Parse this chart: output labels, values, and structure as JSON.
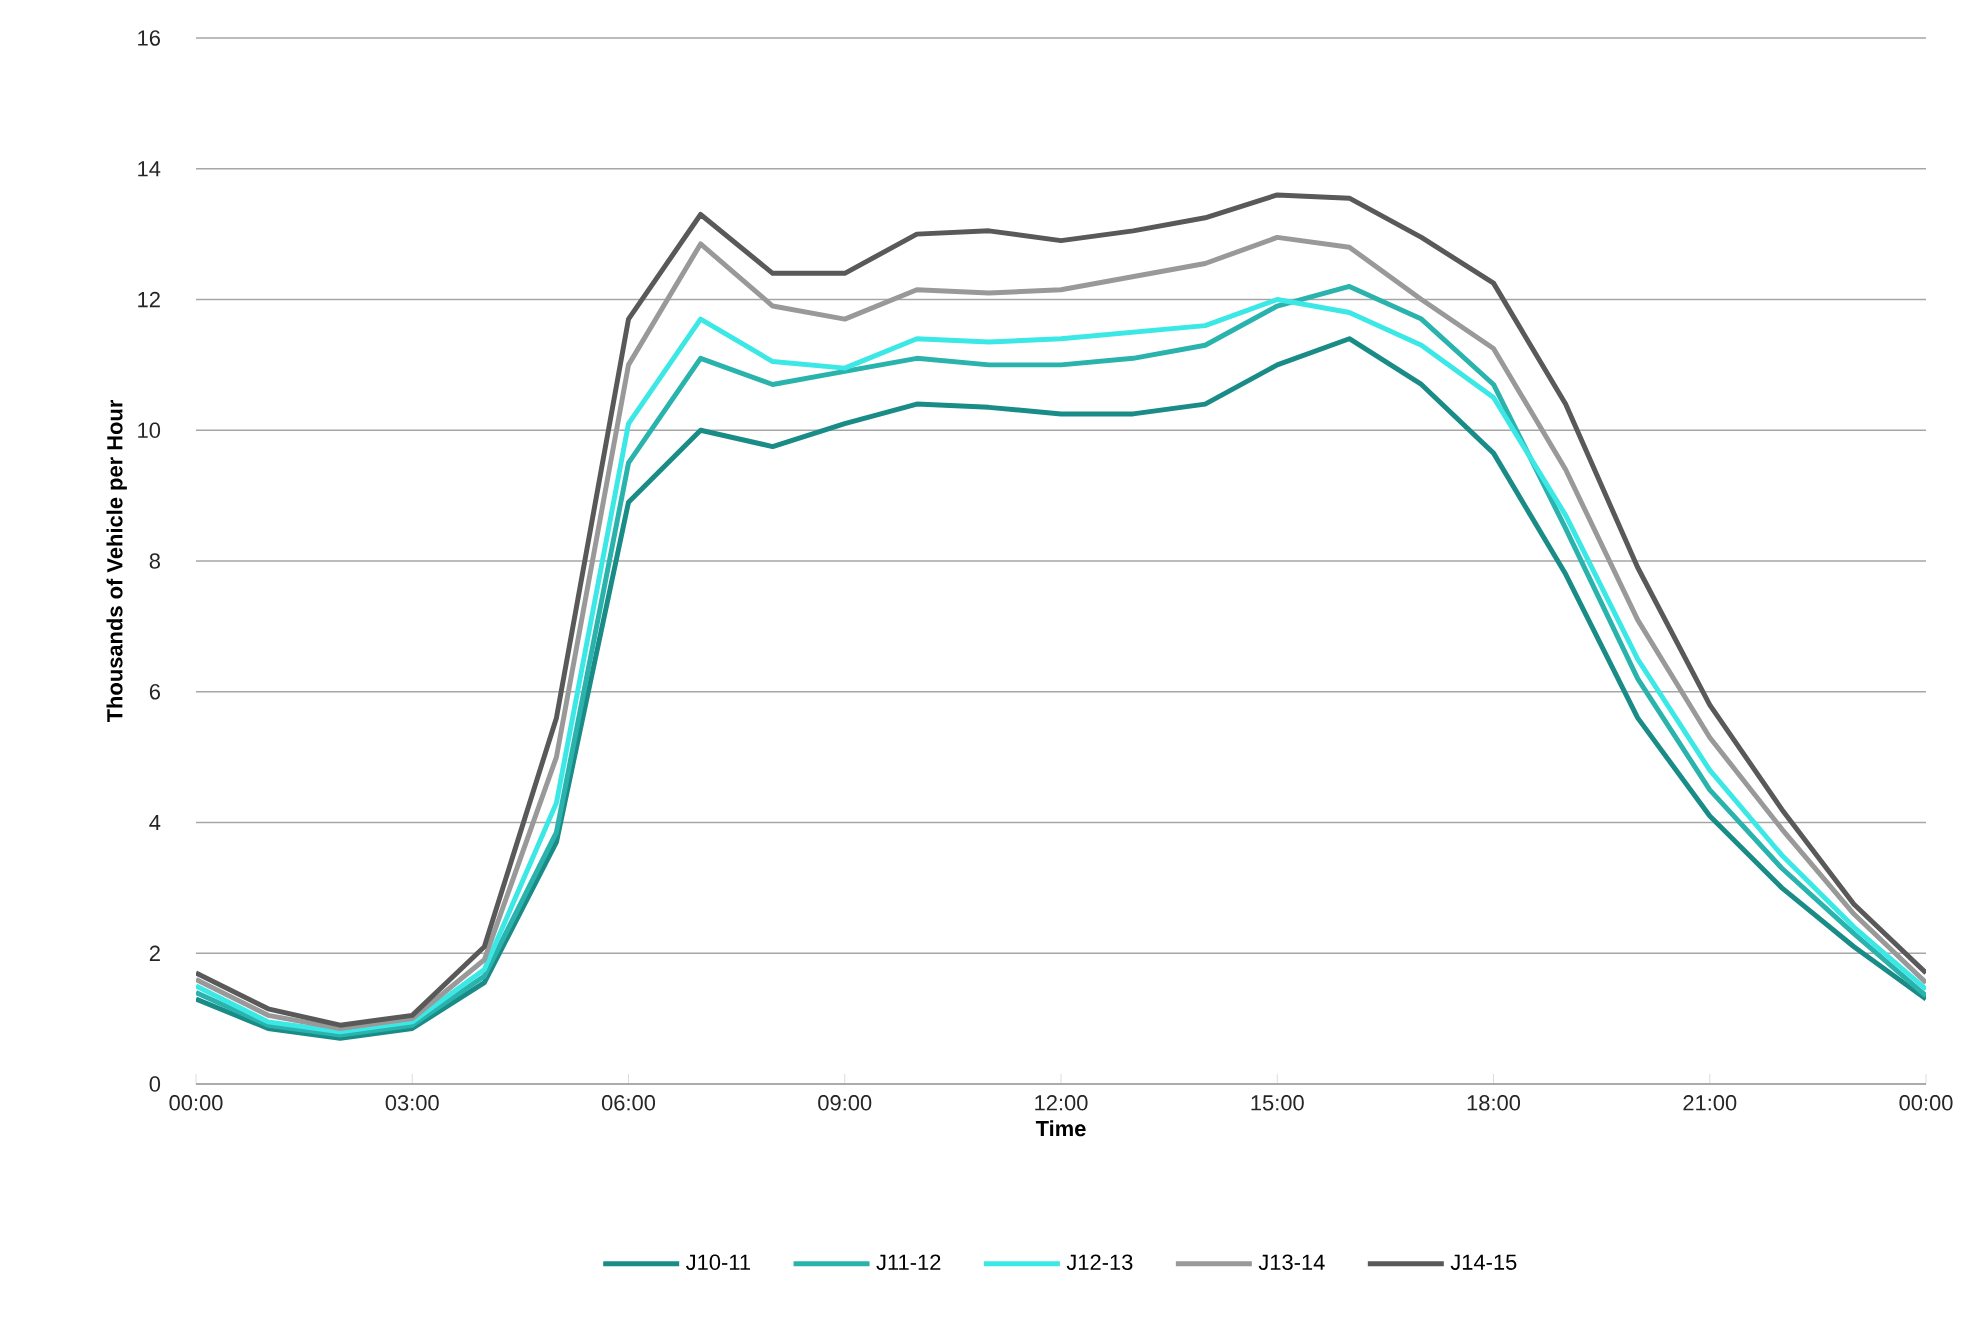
{
  "chart_data": {
    "type": "line",
    "xlabel": "Time",
    "ylabel": "Thousands  of Vehicle per Hour",
    "x": [
      0,
      1,
      2,
      3,
      4,
      5,
      6,
      7,
      8,
      9,
      10,
      11,
      12,
      13,
      14,
      15,
      16,
      17,
      18,
      19,
      20,
      21,
      22,
      23,
      24
    ],
    "xlim": [
      0,
      24
    ],
    "xticks": [
      {
        "value": 0,
        "label": "00:00"
      },
      {
        "value": 3,
        "label": "03:00"
      },
      {
        "value": 6,
        "label": "06:00"
      },
      {
        "value": 9,
        "label": "09:00"
      },
      {
        "value": 12,
        "label": "12:00"
      },
      {
        "value": 15,
        "label": "15:00"
      },
      {
        "value": 18,
        "label": "18:00"
      },
      {
        "value": 21,
        "label": "21:00"
      },
      {
        "value": 24,
        "label": "00:00"
      }
    ],
    "ylim": [
      0,
      16
    ],
    "yticks": [
      0,
      2,
      4,
      6,
      8,
      10,
      12,
      14,
      16
    ],
    "grid": "y",
    "legend": "bottom",
    "line_style": "solid",
    "series": [
      {
        "name": "J10-11",
        "color": "#1a8c87",
        "values": [
          1.3,
          0.85,
          0.7,
          0.85,
          1.55,
          3.7,
          8.9,
          10.0,
          9.75,
          10.1,
          10.4,
          10.35,
          10.25,
          10.25,
          10.4,
          11.0,
          11.4,
          10.7,
          9.65,
          7.8,
          5.6,
          4.1,
          3.0,
          2.1,
          1.3
        ]
      },
      {
        "name": "J11-12",
        "color": "#2ab3ad",
        "values": [
          1.4,
          0.9,
          0.75,
          0.9,
          1.65,
          3.85,
          9.5,
          11.1,
          10.7,
          10.9,
          11.1,
          11.0,
          11.0,
          11.1,
          11.3,
          11.9,
          12.2,
          11.7,
          10.7,
          8.5,
          6.2,
          4.5,
          3.3,
          2.3,
          1.35
        ]
      },
      {
        "name": "J12-13",
        "color": "#3ce8e6",
        "values": [
          1.5,
          0.95,
          0.8,
          0.95,
          1.75,
          4.3,
          10.1,
          11.7,
          11.05,
          10.95,
          11.4,
          11.35,
          11.4,
          11.5,
          11.6,
          12.0,
          11.8,
          11.3,
          10.5,
          8.7,
          6.5,
          4.8,
          3.5,
          2.4,
          1.45
        ]
      },
      {
        "name": "J13-14",
        "color": "#999999",
        "values": [
          1.6,
          1.05,
          0.85,
          1.0,
          1.9,
          5.0,
          11.0,
          12.85,
          11.9,
          11.7,
          12.15,
          12.1,
          12.15,
          12.35,
          12.55,
          12.95,
          12.8,
          12.0,
          11.25,
          9.4,
          7.1,
          5.3,
          3.9,
          2.6,
          1.55
        ]
      },
      {
        "name": "J14-15",
        "color": "#595959",
        "values": [
          1.7,
          1.15,
          0.9,
          1.05,
          2.1,
          5.6,
          11.7,
          13.3,
          12.4,
          12.4,
          13.0,
          13.05,
          12.9,
          13.05,
          13.25,
          13.6,
          13.55,
          12.95,
          12.25,
          10.4,
          7.9,
          5.8,
          4.2,
          2.75,
          1.7
        ]
      }
    ]
  }
}
